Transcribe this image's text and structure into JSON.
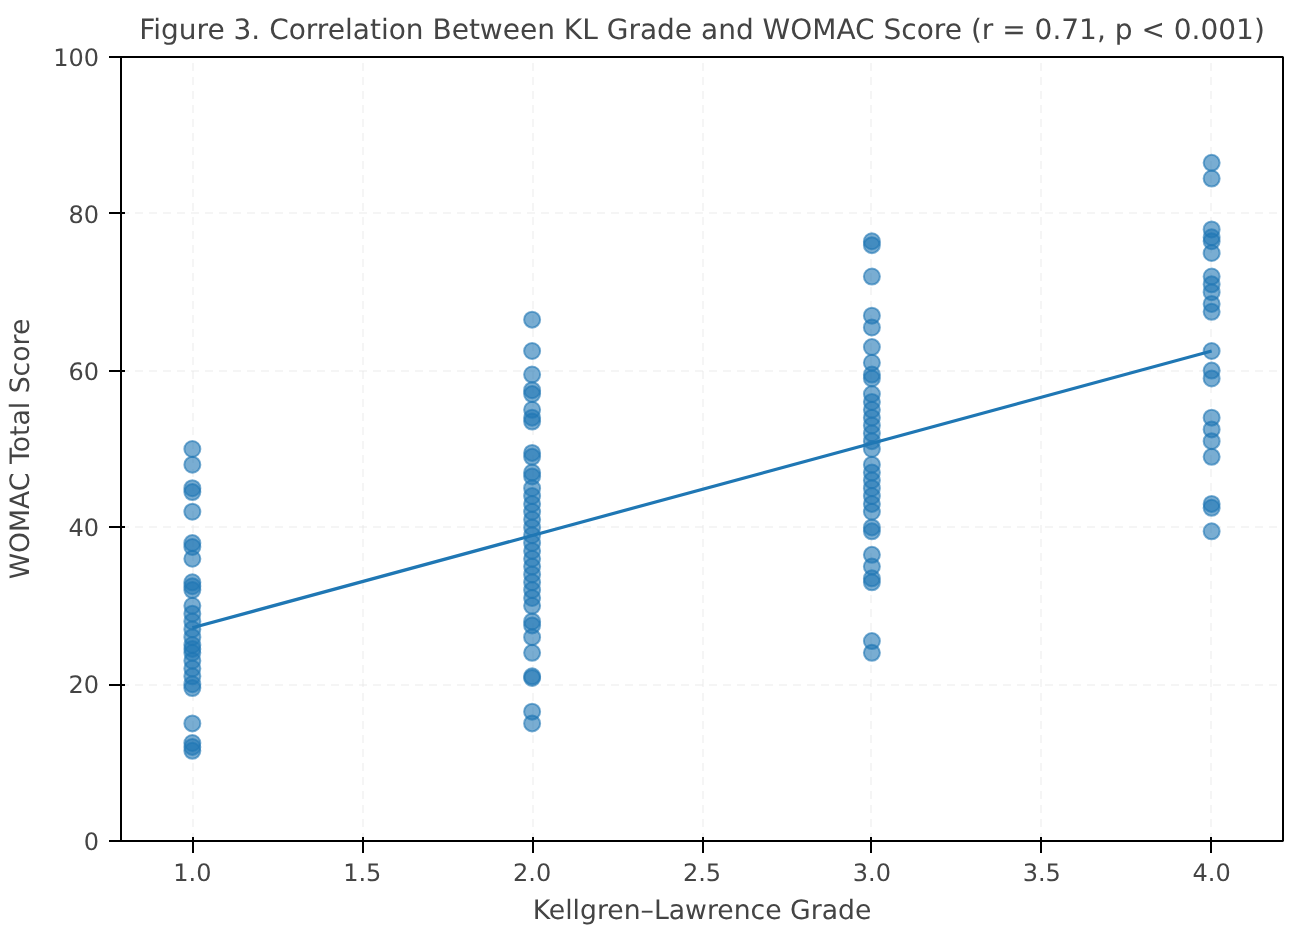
{
  "chart_data": {
    "type": "scatter",
    "title": "Figure 3. Correlation Between KL Grade and WOMAC Score (r = 0.71, p < 0.001)",
    "xlabel": "Kellgren–Lawrence Grade",
    "ylabel": "WOMAC Total Score",
    "xlim": [
      0.79,
      4.21
    ],
    "ylim": [
      0,
      100
    ],
    "xticks": [
      {
        "value": 1,
        "label": "1.0"
      },
      {
        "value": 1.5,
        "label": "1.5"
      },
      {
        "value": 2,
        "label": "2.0"
      },
      {
        "value": 2.5,
        "label": "2.5"
      },
      {
        "value": 3,
        "label": "3.0"
      },
      {
        "value": 3.5,
        "label": "3.5"
      },
      {
        "value": 4,
        "label": "4.0"
      }
    ],
    "yticks": [
      0,
      20,
      40,
      60,
      80,
      100
    ],
    "grid": true,
    "marker": "circle",
    "series": [
      {
        "color": "#1f77b4",
        "x": [
          1,
          1,
          1,
          1,
          1,
          1,
          1,
          1,
          1,
          1,
          1,
          1,
          1,
          1,
          1,
          1,
          1,
          1,
          1,
          1,
          1,
          1,
          1,
          1,
          1,
          1,
          1,
          1,
          2,
          2,
          2,
          2,
          2,
          2,
          2,
          2,
          2,
          2,
          2,
          2,
          2,
          2,
          2,
          2,
          2,
          2,
          2,
          2,
          2,
          2,
          2,
          2,
          2,
          2,
          2,
          2,
          2,
          2,
          2,
          2,
          2,
          2,
          2,
          2,
          3,
          3,
          3,
          3,
          3,
          3,
          3,
          3,
          3,
          3,
          3,
          3,
          3,
          3,
          3,
          3,
          3,
          3,
          3,
          3,
          3,
          3,
          3,
          3,
          3,
          3,
          3,
          3,
          3,
          3,
          3,
          3,
          4,
          4,
          4,
          4,
          4,
          4,
          4,
          4,
          4,
          4,
          4,
          4,
          4,
          4,
          4,
          4,
          4,
          4,
          4,
          4,
          4
        ],
        "values": [
          50,
          48,
          45,
          44.5,
          42,
          38,
          37.5,
          36,
          33,
          32.5,
          32,
          30,
          29,
          28,
          27,
          26,
          25,
          24.5,
          24,
          23,
          22,
          21,
          20,
          19.5,
          15,
          12.5,
          12,
          11.5,
          66.5,
          62.5,
          59.5,
          57.5,
          57,
          55,
          54,
          53.5,
          49.5,
          49,
          47,
          46.5,
          45,
          44,
          43,
          42,
          41,
          40,
          39,
          38,
          37,
          36,
          35,
          34,
          33,
          32,
          31,
          30,
          28,
          27.5,
          26,
          24,
          21,
          20.8,
          16.5,
          15,
          76.5,
          76,
          72,
          67,
          65.5,
          63,
          61,
          59.5,
          59,
          57,
          56,
          55,
          54,
          53,
          52,
          51,
          50,
          48,
          47,
          46,
          45,
          44,
          43,
          42,
          40,
          39.5,
          36.5,
          35,
          33.5,
          33,
          25.5,
          24,
          86.5,
          84.5,
          78,
          77,
          76.5,
          75,
          72,
          71,
          70,
          68.5,
          67.5,
          62.5,
          60,
          59,
          54,
          52.5,
          51,
          49,
          43,
          42.5,
          39.5
        ]
      },
      {
        "type": "line",
        "color": "#1f77b4",
        "marker": "none",
        "x": [
          1,
          4
        ],
        "values": [
          27.2,
          62.5
        ]
      }
    ]
  }
}
